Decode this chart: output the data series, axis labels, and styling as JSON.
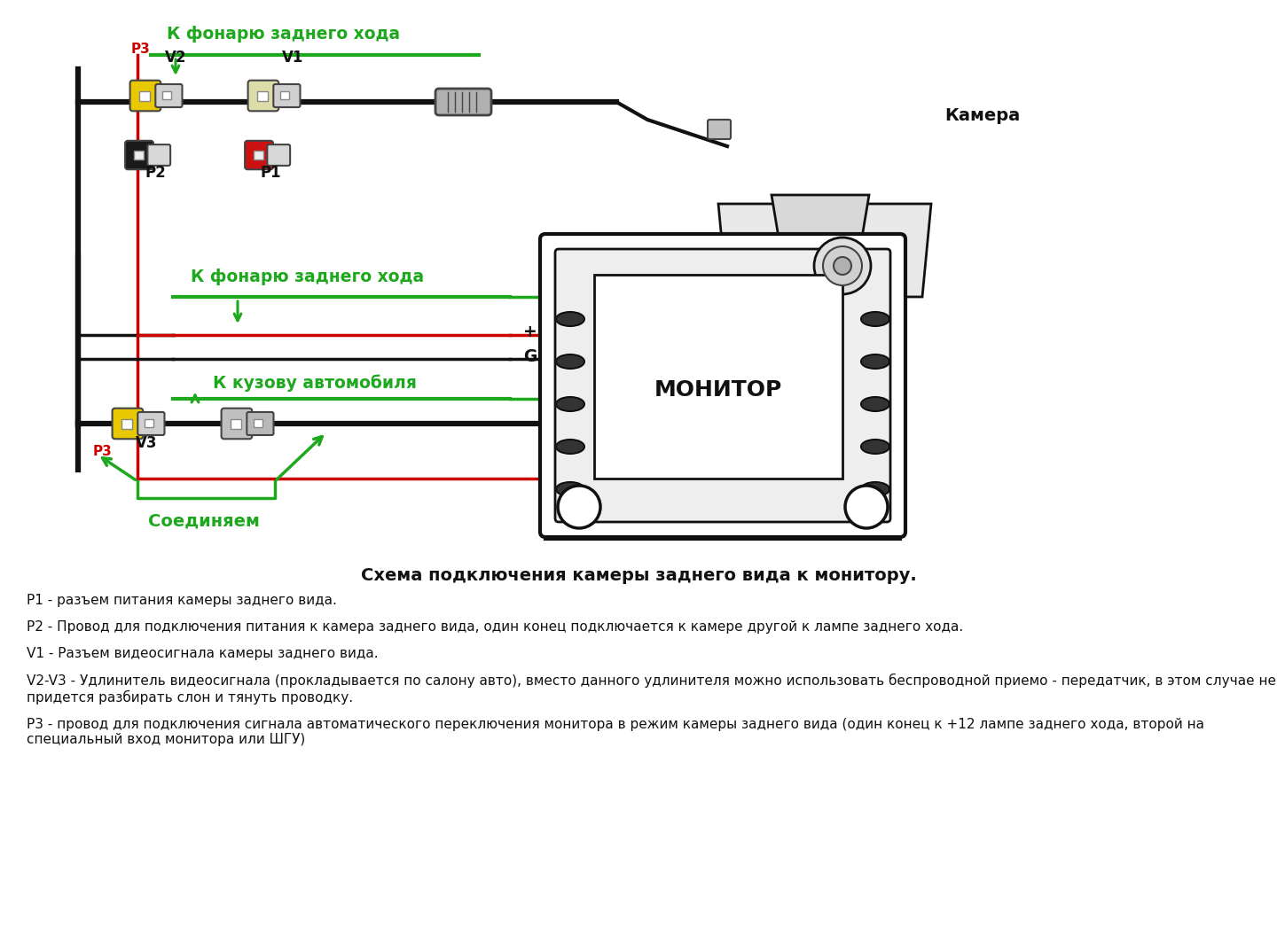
{
  "bg_color": "#ffffff",
  "diagram_title": "Схема подключения камеры заднего вида к монитору.",
  "legend_lines": [
    "P1 - разъем питания камеры заднего вида.",
    "P2 - Провод для подключения питания к камера заднего вида, один конец подключается к камере другой к лампе заднего хода.",
    "V1 - Разъем видеосигнала камеры заднего вида.",
    "V2-V3 - Удлинитель видеосигнала (прокладывается по салону авто), вместо данного удлинителя можно использовать беспроводной приемо - передатчик, в этом случае не придется разбирать слон и тянуть проводку.",
    "P3 - провод для подключения сигнала автоматического переключения монитора в режим камеры заднего вида (один конец к +12 лампе заднего хода, второй на специальный вход монитора или ШГУ)"
  ],
  "green": "#1ea81e",
  "red": "#cc0000",
  "black": "#111111",
  "yellow": "#e8c800",
  "dark_gray": "#444444",
  "light_gray": "#cccccc",
  "mid_gray": "#888888",
  "white": "#ffffff"
}
